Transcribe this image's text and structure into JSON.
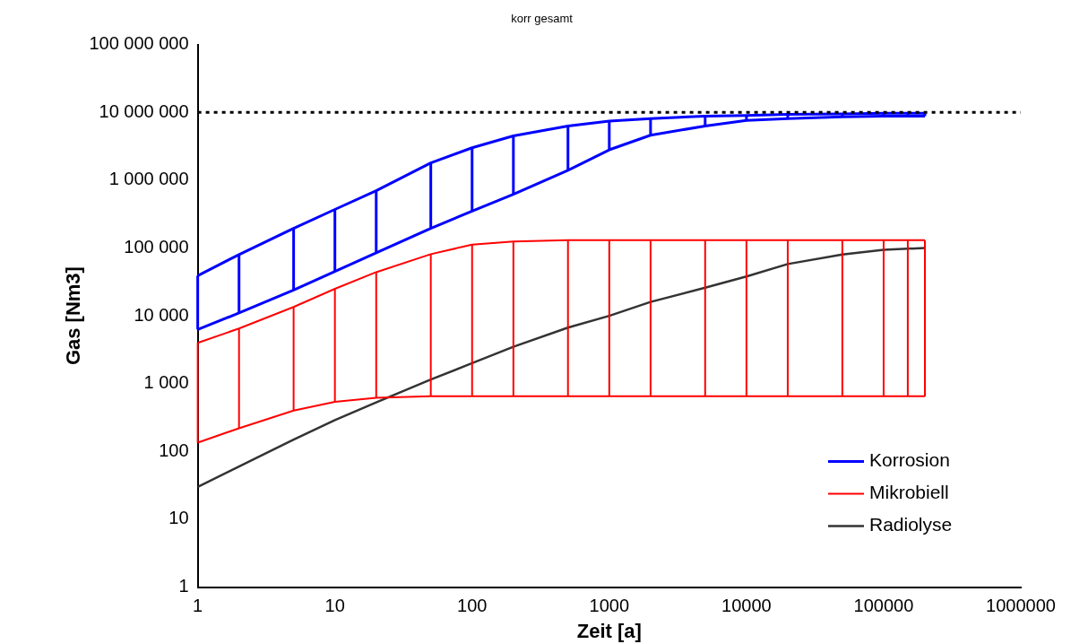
{
  "chart_data": {
    "type": "line",
    "title": "korr gesamt",
    "xlabel": "Zeit [a]",
    "ylabel": "Gas [Nm3]",
    "log": "xy",
    "grid": false,
    "legend": "bottom right",
    "marker": "none",
    "line_style": "solid",
    "xlim": [
      1,
      1000000
    ],
    "xticks": [
      1,
      10,
      100,
      1000,
      10000,
      100000,
      1000000
    ],
    "ylim": [
      1,
      100000000
    ],
    "yticks": [
      {
        "value": 1,
        "label": "1"
      },
      {
        "value": 10,
        "label": "10"
      },
      {
        "value": 100,
        "label": "100"
      },
      {
        "value": 1000,
        "label": "1 000"
      },
      {
        "value": 10000,
        "label": "10 000"
      },
      {
        "value": 100000,
        "label": "100 000"
      },
      {
        "value": 1000000,
        "label": "1 000 000"
      },
      {
        "value": 10000000,
        "label": "10 000 000"
      },
      {
        "value": 100000000,
        "label": "100 000 000"
      }
    ],
    "ref_lines": [
      {
        "axis": "y",
        "value": 10000000,
        "color": "#000000",
        "line_style": "dotted"
      }
    ],
    "series": [
      {
        "name": "Korrosion",
        "color": "#0000ff",
        "x": [
          1,
          2,
          5,
          10,
          20,
          50,
          100,
          200,
          500,
          1000,
          2000,
          5000,
          10000,
          20000,
          50000,
          100000,
          150000,
          200000
        ],
        "values": [
          39000,
          80000,
          195000,
          370000,
          700000,
          1800000,
          3000000,
          4500000,
          6300000,
          7400000,
          8100000,
          8800000,
          9000000,
          9300000,
          9500000,
          9700000,
          9700000,
          9700000
        ],
        "errors": [
          [
            6300,
            39000
          ],
          [
            11000,
            80000
          ],
          [
            24000,
            195000
          ],
          [
            45000,
            370000
          ],
          [
            85000,
            700000
          ],
          [
            195000,
            1800000
          ],
          [
            350000,
            3000000
          ],
          [
            620000,
            4500000
          ],
          [
            1400000,
            6300000
          ],
          [
            2800000,
            7400000
          ],
          [
            4600000,
            8100000
          ],
          [
            6300000,
            8800000
          ],
          [
            7600000,
            9000000
          ],
          [
            8100000,
            9300000
          ],
          [
            8600000,
            9500000
          ],
          [
            8800000,
            9700000
          ],
          [
            8800000,
            9700000
          ],
          [
            8800000,
            9700000
          ]
        ]
      },
      {
        "color": "#0000ff",
        "x": [
          1,
          2,
          5,
          10,
          20,
          50,
          100,
          200,
          500,
          1000,
          2000,
          5000,
          10000,
          20000,
          50000,
          100000,
          150000,
          200000
        ],
        "values": [
          6300,
          11000,
          24000,
          45000,
          85000,
          195000,
          350000,
          620000,
          1400000,
          2800000,
          4600000,
          6300000,
          7600000,
          8100000,
          8600000,
          8800000,
          8800000,
          8800000
        ]
      },
      {
        "name": "Mikrobiell",
        "color": "#ff0000",
        "x": [
          1,
          2,
          5,
          10,
          20,
          50,
          100,
          200,
          500,
          1000,
          2000,
          5000,
          10000,
          20000,
          50000,
          100000,
          150000,
          200000
        ],
        "values": [
          4000,
          6500,
          13500,
          25000,
          44000,
          81000,
          112000,
          125000,
          130000,
          130000,
          130000,
          130000,
          130000,
          130000,
          130000,
          130000,
          130000,
          130000
        ],
        "errors": [
          [
            135,
            4000
          ],
          [
            220,
            6500
          ],
          [
            400,
            13500
          ],
          [
            540,
            25000
          ],
          [
            620,
            44000
          ],
          [
            650,
            81000
          ],
          [
            650,
            112000
          ],
          [
            650,
            125000
          ],
          [
            650,
            130000
          ],
          [
            650,
            130000
          ],
          [
            650,
            130000
          ],
          [
            650,
            130000
          ],
          [
            650,
            130000
          ],
          [
            650,
            130000
          ],
          [
            650,
            130000
          ],
          [
            650,
            130000
          ],
          [
            650,
            130000
          ],
          [
            650,
            130000
          ]
        ]
      },
      {
        "color": "#ff0000",
        "x": [
          1,
          2,
          5,
          10,
          20,
          50,
          100,
          200,
          500,
          1000,
          2000,
          5000,
          10000,
          20000,
          50000,
          100000,
          150000,
          200000
        ],
        "values": [
          135,
          220,
          400,
          540,
          620,
          650,
          650,
          650,
          650,
          650,
          650,
          650,
          650,
          650,
          650,
          650,
          650,
          650
        ]
      },
      {
        "name": "Radiolyse",
        "color": "#333333",
        "x": [
          1,
          2,
          5,
          10,
          20,
          50,
          100,
          200,
          500,
          1000,
          2000,
          5000,
          10000,
          20000,
          50000,
          100000,
          200000
        ],
        "values": [
          30,
          60,
          150,
          290,
          530,
          1150,
          2000,
          3500,
          6700,
          10000,
          16000,
          26000,
          38000,
          58000,
          80000,
          94000,
          100000
        ]
      }
    ]
  }
}
